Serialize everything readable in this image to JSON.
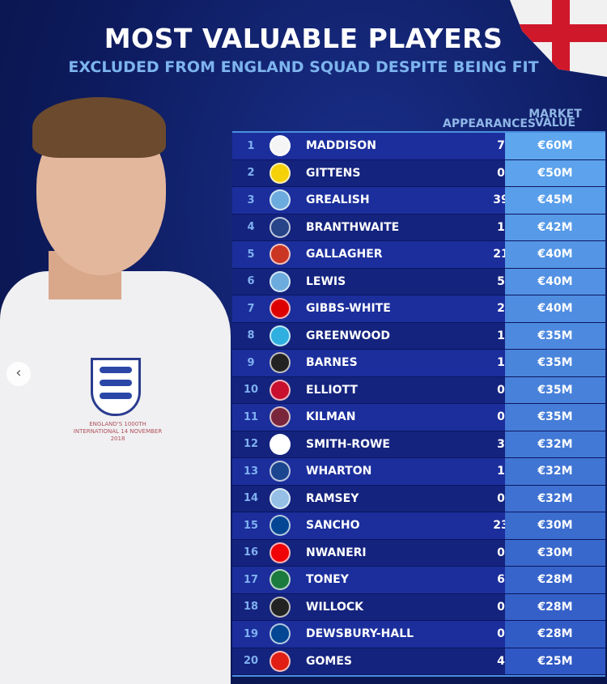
{
  "title": "MOST VALUABLE PLAYERS",
  "subtitle": "EXCLUDED FROM ENGLAND SQUAD DESPITE BEING FIT",
  "shirt_text": "ENGLAND'S 1000TH INTERNATIONAL 14 NOVEMBER 2018",
  "headers": {
    "appearances": "APPEARANCES",
    "market_value": "MARKET\nVALUE"
  },
  "colors": {
    "row_dark": "#14237e",
    "row_light": "#1b2e9c",
    "value_top": "#5ea6ee",
    "value_bottom": "#2f58c4",
    "rank": "#7fb0f0"
  },
  "players": [
    {
      "rank": "1",
      "club": "tottenham",
      "name": "MADDISON",
      "apps": "7",
      "value": "€60M"
    },
    {
      "rank": "2",
      "club": "dortmund",
      "name": "GITTENS",
      "apps": "0",
      "value": "€50M"
    },
    {
      "rank": "3",
      "club": "man-city",
      "name": "GREALISH",
      "apps": "39",
      "value": "€45M"
    },
    {
      "rank": "4",
      "club": "everton",
      "name": "BRANTHWAITE",
      "apps": "1",
      "value": "€42M"
    },
    {
      "rank": "5",
      "club": "atletico-madrid",
      "name": "GALLAGHER",
      "apps": "21",
      "value": "€40M"
    },
    {
      "rank": "6",
      "club": "man-city",
      "name": "LEWIS",
      "apps": "5",
      "value": "€40M"
    },
    {
      "rank": "7",
      "club": "nottingham-forest",
      "name": "GIBBS-WHITE",
      "apps": "2",
      "value": "€40M"
    },
    {
      "rank": "8",
      "club": "marseille",
      "name": "GREENWOOD",
      "apps": "1",
      "value": "€35M"
    },
    {
      "rank": "9",
      "club": "newcastle",
      "name": "BARNES",
      "apps": "1",
      "value": "€35M"
    },
    {
      "rank": "10",
      "club": "liverpool",
      "name": "ELLIOTT",
      "apps": "0",
      "value": "€35M"
    },
    {
      "rank": "11",
      "club": "west-ham",
      "name": "KILMAN",
      "apps": "0",
      "value": "€35M"
    },
    {
      "rank": "12",
      "club": "fulham",
      "name": "SMITH-ROWE",
      "apps": "3",
      "value": "€32M"
    },
    {
      "rank": "13",
      "club": "crystal-palace",
      "name": "WHARTON",
      "apps": "1",
      "value": "€32M"
    },
    {
      "rank": "14",
      "club": "aston-villa",
      "name": "RAMSEY",
      "apps": "0",
      "value": "€32M"
    },
    {
      "rank": "15",
      "club": "chelsea",
      "name": "SANCHO",
      "apps": "23",
      "value": "€30M"
    },
    {
      "rank": "16",
      "club": "arsenal",
      "name": "NWANERI",
      "apps": "0",
      "value": "€30M"
    },
    {
      "rank": "17",
      "club": "al-ahli",
      "name": "TONEY",
      "apps": "6",
      "value": "€28M"
    },
    {
      "rank": "18",
      "club": "newcastle",
      "name": "WILLOCK",
      "apps": "0",
      "value": "€28M"
    },
    {
      "rank": "19",
      "club": "chelsea",
      "name": "DEWSBURY-HALL",
      "apps": "0",
      "value": "€28M"
    },
    {
      "rank": "20",
      "club": "lille",
      "name": "GOMES",
      "apps": "4",
      "value": "€25M"
    }
  ]
}
